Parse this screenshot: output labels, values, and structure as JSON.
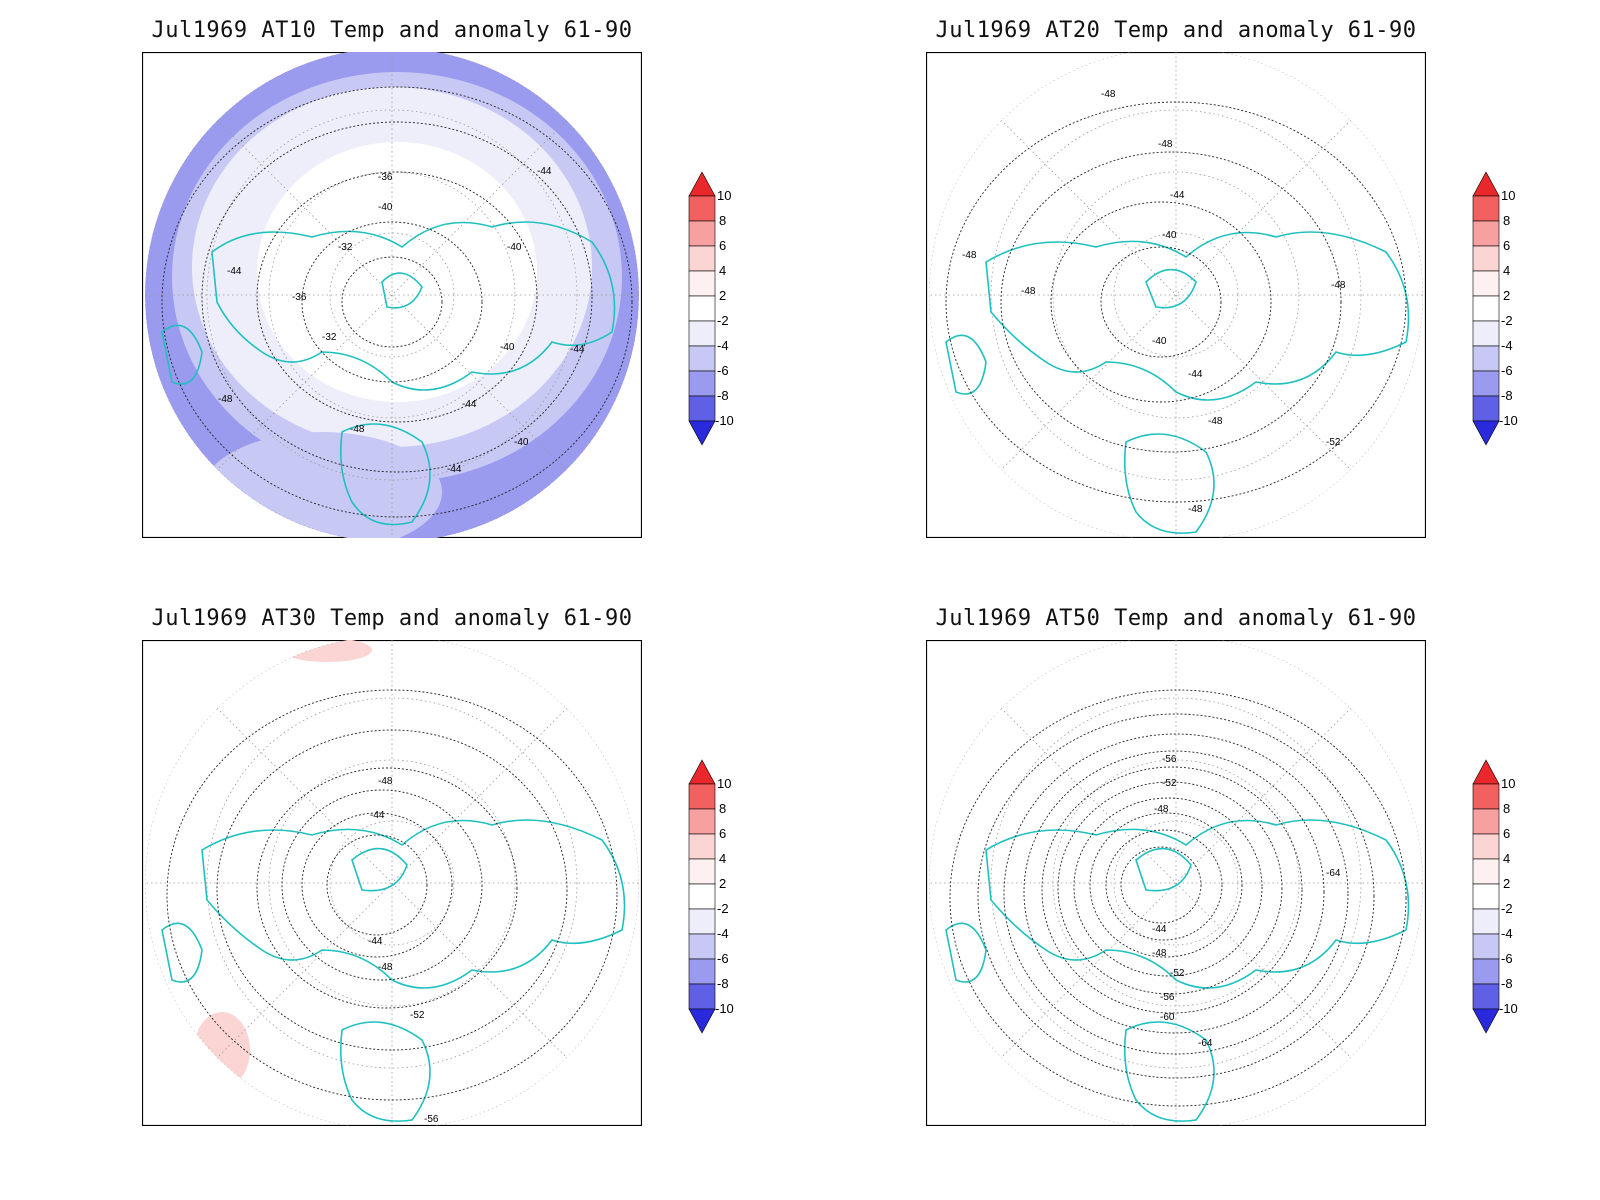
{
  "colorbar": {
    "levels": [
      "10",
      "8",
      "6",
      "4",
      "2",
      "-2",
      "-4",
      "-6",
      "-8",
      "-10"
    ],
    "colors": {
      "r10": "#e8282a",
      "r8": "#f26060",
      "r6": "#f7a0a0",
      "r4": "#fbd4d4",
      "r2": "#fdf0f0",
      "n2": "#eeeefb",
      "n4": "#c8c8f5",
      "n6": "#9a9aee",
      "n8": "#6060e6",
      "n10": "#2a2adc"
    }
  },
  "land_color": "#1fc0c0",
  "panels": [
    {
      "title": "Jul1969 AT10 Temp and anomaly 61-90",
      "contour_labels": [
        "-32",
        "-36",
        "-40",
        "-44",
        "-48",
        "-40",
        "-44",
        "-36",
        "-32",
        "-40",
        "-44",
        "-44",
        "-40",
        "-48",
        "-44"
      ],
      "anomaly_shading": "negative"
    },
    {
      "title": "Jul1969 AT20 Temp and anomaly 61-90",
      "contour_labels": [
        "-48",
        "-48",
        "-44",
        "-40",
        "-40",
        "-44",
        "-48",
        "-48",
        "-48",
        "-52",
        "-48",
        "-48"
      ],
      "anomaly_shading": "none"
    },
    {
      "title": "Jul1969 AT30 Temp and anomaly 61-90",
      "contour_labels": [
        "-48",
        "-44",
        "-44",
        "-48",
        "-52",
        "-56"
      ],
      "anomaly_shading": "slight-positive"
    },
    {
      "title": "Jul1969 AT50 Temp and anomaly 61-90",
      "contour_labels": [
        "-56",
        "-52",
        "-48",
        "-44",
        "-48",
        "-52",
        "-56",
        "-60",
        "-64",
        "-64"
      ],
      "anomaly_shading": "none"
    }
  ]
}
